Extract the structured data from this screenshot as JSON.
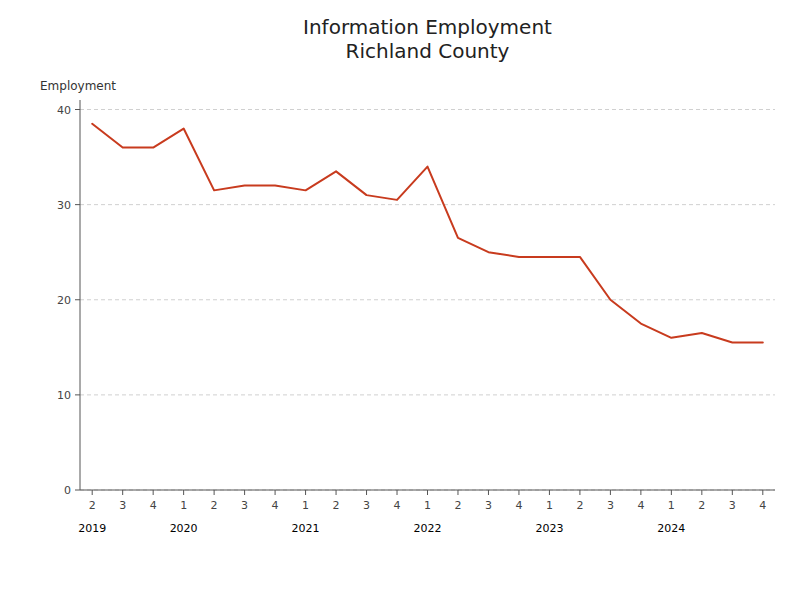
{
  "chart_data": {
    "type": "line",
    "title": "Information Employment\nRichland County",
    "ylabel": "Employment",
    "categories": [
      "2",
      "3",
      "4",
      "1",
      "2",
      "3",
      "4",
      "1",
      "2",
      "3",
      "4",
      "1",
      "2",
      "3",
      "4",
      "1",
      "2",
      "3",
      "4",
      "1",
      "2",
      "3",
      "4"
    ],
    "values": [
      38.5,
      36.0,
      36.0,
      38.0,
      31.5,
      32.0,
      32.0,
      31.5,
      33.5,
      31.0,
      30.5,
      34.0,
      26.5,
      25.0,
      24.5,
      24.5,
      24.5,
      20.0,
      17.5,
      16.0,
      16.5,
      15.5,
      15.5
    ],
    "color": "#C83B1E",
    "ylim": [
      0,
      41
    ],
    "yticks": [
      0,
      10,
      20,
      30,
      40
    ],
    "grid": true,
    "annotations": [
      {
        "text": "2019",
        "x": 0
      },
      {
        "text": "2020",
        "x": 3
      },
      {
        "text": "2021",
        "x": 7
      },
      {
        "text": "2022",
        "x": 11
      },
      {
        "text": "2023",
        "x": 15
      },
      {
        "text": "2024",
        "x": 19
      }
    ]
  }
}
